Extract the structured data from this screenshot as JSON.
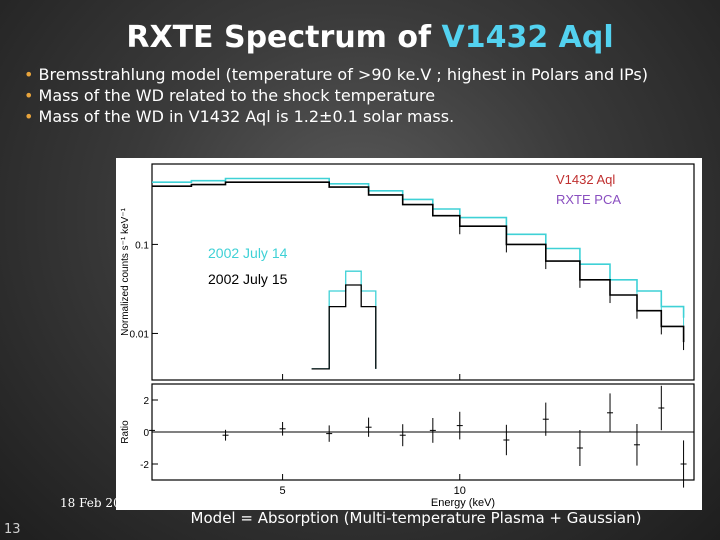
{
  "slide": {
    "title_main": "RXTE Spectrum of ",
    "title_highlight": "V1432 Aql",
    "bullets": [
      {
        "marker": "•",
        "text": " Bremsstrahlung model (temperature of  >90 ke.V ; highest in Polars and IPs)"
      },
      {
        "marker": "•",
        "text": " Mass of the WD related to the shock temperature"
      },
      {
        "marker": "•",
        "text": " Mass of the WD in V1432 Aql is 1.2±0.1 solar mass."
      }
    ],
    "date": "18 Feb 20",
    "slide_number": "13",
    "model_caption": "Model = Absorption (Multi-temperature Plasma + Gaussian)"
  },
  "colors": {
    "accent": "#53d2f0",
    "bullet": "#e8a43c",
    "series_cyan": "#3fd1d6",
    "series_black": "#000000",
    "label_red": "#c03030",
    "label_purple": "#8a4fc0"
  },
  "chart_data": {
    "type": "line",
    "title": "",
    "xlabel": "Energy (keV)",
    "ylabel": "Normalized counts s⁻¹ keV⁻¹",
    "x_scale": "log",
    "y_scale": "log",
    "xlim": [
      3,
      25
    ],
    "ylim": [
      0.003,
      0.8
    ],
    "x_ticks": [
      "5",
      "10"
    ],
    "y_ticks": [
      "0.1",
      "0.01"
    ],
    "grid": false,
    "top_labels": [
      {
        "text": "V1432 Aql",
        "color": "#c03030"
      },
      {
        "text": "RXTE PCA",
        "color": "#8a4fc0"
      }
    ],
    "legend": [
      {
        "text": "2002 July 14",
        "color": "#3fd1d6"
      },
      {
        "text": "2002 July 15",
        "color": "#000000"
      }
    ],
    "series": [
      {
        "name": "2002 July 14",
        "x": [
          3.0,
          3.5,
          4,
          5,
          6,
          7,
          8,
          9,
          10,
          12,
          14,
          16,
          18,
          20,
          22,
          24
        ],
        "y": [
          0.5,
          0.52,
          0.55,
          0.55,
          0.48,
          0.4,
          0.32,
          0.25,
          0.2,
          0.13,
          0.09,
          0.06,
          0.04,
          0.03,
          0.02,
          0.015
        ]
      },
      {
        "name": "2002 July 15",
        "x": [
          3.0,
          3.5,
          4,
          5,
          6,
          7,
          8,
          9,
          10,
          12,
          14,
          16,
          18,
          20,
          22,
          24
        ],
        "y": [
          0.45,
          0.47,
          0.5,
          0.5,
          0.44,
          0.36,
          0.28,
          0.21,
          0.16,
          0.1,
          0.065,
          0.04,
          0.027,
          0.018,
          0.012,
          0.008
        ]
      },
      {
        "name": "Gaussian July 14",
        "x": [
          5.6,
          6.0,
          6.4,
          6.8,
          7.2
        ],
        "y": [
          0.004,
          0.03,
          0.05,
          0.03,
          0.004
        ]
      },
      {
        "name": "Gaussian July 15",
        "x": [
          5.6,
          6.0,
          6.4,
          6.8,
          7.2
        ],
        "y": [
          0.004,
          0.02,
          0.035,
          0.02,
          0.004
        ]
      }
    ],
    "ratio_panel": {
      "ylabel": "Ratio",
      "y_ticks": [
        "2",
        "0",
        "-2"
      ],
      "ylim": [
        -3,
        3
      ],
      "x": [
        3.0,
        4,
        5,
        6,
        7,
        8,
        9,
        10,
        12,
        14,
        16,
        18,
        20,
        22,
        24
      ],
      "y": [
        0.1,
        -0.2,
        0.2,
        -0.1,
        0.3,
        -0.2,
        0.1,
        0.4,
        -0.5,
        0.8,
        -1.0,
        1.2,
        -0.8,
        1.5,
        -2.0
      ]
    }
  }
}
